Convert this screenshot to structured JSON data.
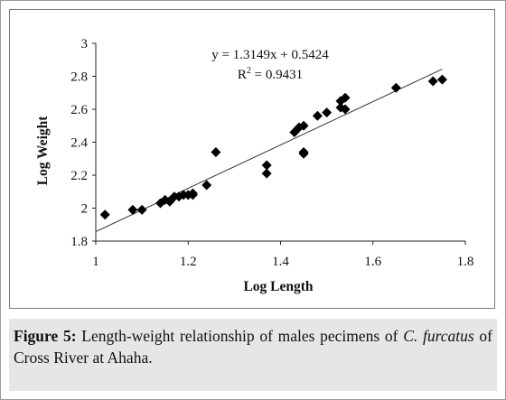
{
  "caption": {
    "label": "Figure 5:",
    "text_before": " Length-weight relationship of males pecimens of ",
    "species": "C. furcatus",
    "text_after": " of Cross River at Ahaha."
  },
  "chart_data": {
    "type": "scatter",
    "title": "",
    "xlabel": "Log Length",
    "ylabel": "Log Weight",
    "xlim": [
      1,
      1.8
    ],
    "ylim": [
      1.8,
      3
    ],
    "x_ticks": [
      "1",
      "1.2",
      "1.4",
      "1.6",
      "1.8"
    ],
    "y_ticks": [
      "1.8",
      "2",
      "2.2",
      "2.4",
      "2.6",
      "2.8",
      "3"
    ],
    "grid": false,
    "legend": "none",
    "marker": "diamond",
    "marker_color": "#000000",
    "trendline": {
      "slope": 1.3149,
      "intercept": 0.5424,
      "x_range": [
        1.0,
        1.75
      ],
      "equation": "y = 1.3149x + 0.5424",
      "r2_label": "R",
      "r2_sup": "2",
      "r2_value": " = 0.9431"
    },
    "points": [
      {
        "x": 1.02,
        "y": 1.96
      },
      {
        "x": 1.08,
        "y": 1.99
      },
      {
        "x": 1.1,
        "y": 1.99
      },
      {
        "x": 1.14,
        "y": 2.03
      },
      {
        "x": 1.15,
        "y": 2.05
      },
      {
        "x": 1.16,
        "y": 2.04
      },
      {
        "x": 1.17,
        "y": 2.07
      },
      {
        "x": 1.18,
        "y": 2.07
      },
      {
        "x": 1.19,
        "y": 2.08
      },
      {
        "x": 1.2,
        "y": 2.08
      },
      {
        "x": 1.21,
        "y": 2.08
      },
      {
        "x": 1.21,
        "y": 2.09
      },
      {
        "x": 1.24,
        "y": 2.14
      },
      {
        "x": 1.26,
        "y": 2.34
      },
      {
        "x": 1.37,
        "y": 2.21
      },
      {
        "x": 1.37,
        "y": 2.26
      },
      {
        "x": 1.43,
        "y": 2.46
      },
      {
        "x": 1.44,
        "y": 2.49
      },
      {
        "x": 1.45,
        "y": 2.5
      },
      {
        "x": 1.45,
        "y": 2.33
      },
      {
        "x": 1.45,
        "y": 2.34
      },
      {
        "x": 1.48,
        "y": 2.56
      },
      {
        "x": 1.5,
        "y": 2.58
      },
      {
        "x": 1.53,
        "y": 2.61
      },
      {
        "x": 1.53,
        "y": 2.65
      },
      {
        "x": 1.54,
        "y": 2.6
      },
      {
        "x": 1.54,
        "y": 2.67
      },
      {
        "x": 1.65,
        "y": 2.73
      },
      {
        "x": 1.73,
        "y": 2.77
      },
      {
        "x": 1.75,
        "y": 2.78
      }
    ]
  }
}
